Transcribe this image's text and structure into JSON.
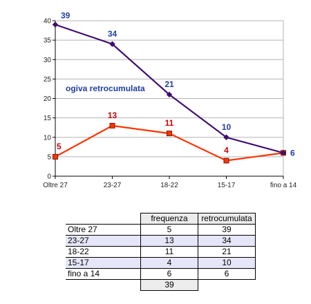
{
  "chart_data": {
    "type": "line",
    "categories": [
      "Oltre 27",
      "23-27",
      "18-22",
      "15-17",
      "fino a 14"
    ],
    "series": [
      {
        "name": "frequenza",
        "values": [
          5,
          13,
          11,
          4,
          6
        ],
        "color": "#ff3300",
        "label_color": "#cc0000",
        "marker": "square"
      },
      {
        "name": "retrocumulata",
        "values": [
          39,
          34,
          21,
          10,
          6
        ],
        "color": "#3f0f6f",
        "label_color": "#1f3f9f",
        "marker": "diamond"
      }
    ],
    "ylim": [
      0,
      40
    ],
    "yticks": [
      0,
      5,
      10,
      15,
      20,
      25,
      30,
      35,
      40
    ],
    "grid": true,
    "annotation": "ogiva retrocumulata",
    "annotation_color": "#1f3f9f",
    "gridline_color": "#b3b3b3"
  },
  "table": {
    "headers": [
      "",
      "frequenza",
      "retrocumulata"
    ],
    "rows": [
      {
        "label": "Oltre 27",
        "freq": "5",
        "retro": "39"
      },
      {
        "label": "23-27",
        "freq": "13",
        "retro": "34"
      },
      {
        "label": "18-22",
        "freq": "11",
        "retro": "21"
      },
      {
        "label": "15-17",
        "freq": "4",
        "retro": "10"
      },
      {
        "label": "fino a 14",
        "freq": "6",
        "retro": "6"
      }
    ],
    "total": "39"
  }
}
